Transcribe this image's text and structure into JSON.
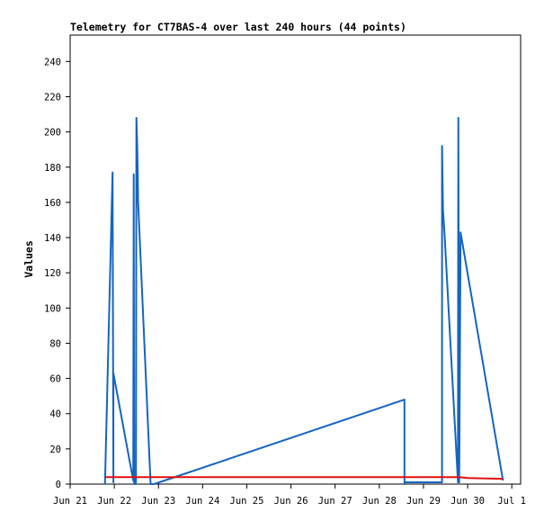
{
  "chart_data": {
    "type": "line",
    "title": "Telemetry for CT7BAS-4 over last 240 hours (44 points)",
    "xlabel": "",
    "ylabel": "Values",
    "ylim": [
      0,
      255
    ],
    "yticks": [
      0,
      20,
      40,
      60,
      80,
      100,
      120,
      140,
      160,
      180,
      200,
      220,
      240
    ],
    "xlim": [
      21.0,
      31.2
    ],
    "xticks": [
      {
        "label": "Jun 21",
        "day": 21
      },
      {
        "label": "Jun 22",
        "day": 22
      },
      {
        "label": "Jun 23",
        "day": 23
      },
      {
        "label": "Jun 24",
        "day": 24
      },
      {
        "label": "Jun 25",
        "day": 25
      },
      {
        "label": "Jun 26",
        "day": 26
      },
      {
        "label": "Jun 27",
        "day": 27
      },
      {
        "label": "Jun 28",
        "day": 28
      },
      {
        "label": "Jun 29",
        "day": 29
      },
      {
        "label": "Jun 30",
        "day": 30
      },
      {
        "label": "Jul 1",
        "day": 31
      }
    ],
    "grid": false,
    "series": [
      {
        "color": "#1565c0",
        "x": [
          21.79,
          21.79,
          21.96,
          21.98,
          21.98,
          22.43,
          22.44,
          22.45,
          22.45,
          22.48,
          22.49,
          22.5,
          22.52,
          22.53,
          22.54,
          22.82,
          22.82,
          22.9,
          28.57,
          28.57,
          28.57,
          29.42,
          29.42,
          29.44,
          29.48,
          29.78,
          29.78,
          29.79,
          29.81,
          29.84,
          30.8
        ],
        "y": [
          0,
          1,
          177,
          1,
          63,
          2,
          176,
          0,
          1,
          0,
          1,
          208,
          190,
          176,
          160,
          1,
          0,
          0,
          48,
          0,
          1,
          1,
          192,
          156,
          141,
          1,
          1,
          208,
          1,
          143,
          2
        ]
      },
      {
        "color": "#e01010",
        "x": [
          21.79,
          22.5,
          23.0,
          24.0,
          25.0,
          26.0,
          27.0,
          28.0,
          29.0,
          29.8,
          30.0,
          30.8
        ],
        "y": [
          4,
          4,
          4,
          4,
          4,
          4,
          4,
          4,
          4,
          4,
          3.5,
          3
        ]
      }
    ]
  }
}
